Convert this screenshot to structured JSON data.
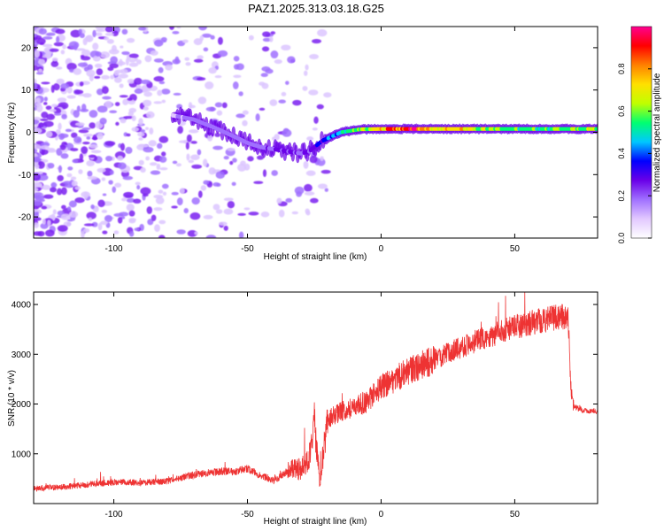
{
  "title": "PAZ1.2025.313.03.18.G25",
  "chart_data": [
    {
      "type": "heatmap",
      "subtype": "spectrogram",
      "xlabel": "Height of straight line (km)",
      "ylabel": "Frequency (Hz)",
      "xlim": [
        -130,
        81
      ],
      "ylim": [
        -25,
        25
      ],
      "xticks": [
        -100,
        -50,
        0,
        50
      ],
      "yticks": [
        -20,
        -10,
        0,
        10,
        20
      ],
      "colorbar": {
        "label": "Normalized spectral amplitude",
        "range": [
          0,
          1
        ],
        "ticks": [
          "0.0",
          "0.2",
          "0.4",
          "0.6",
          "0.8"
        ],
        "colormap": [
          "#ffffff",
          "#e2c8ff",
          "#a070ff",
          "#6a00e8",
          "#0000ff",
          "#00c8ff",
          "#00ff70",
          "#c0ff00",
          "#ffe000",
          "#ff8000",
          "#ff0000",
          "#ff0090"
        ]
      },
      "signal_track": {
        "height_km": [
          -78,
          -70,
          -62,
          -55,
          -50,
          -45,
          -40,
          -35,
          -30,
          -27,
          -22,
          -15,
          -8,
          0,
          10,
          20,
          30,
          40,
          50,
          60,
          70,
          81
        ],
        "frequency_hz": [
          4,
          3,
          1,
          -1,
          -2.5,
          -3.5,
          -4,
          -4.5,
          -5,
          -4.5,
          -2,
          0,
          0.7,
          0.8,
          0.8,
          0.8,
          0.8,
          0.8,
          0.8,
          0.8,
          0.8,
          0.8
        ],
        "amplitude": [
          0.12,
          0.18,
          0.2,
          0.18,
          0.16,
          0.2,
          0.24,
          0.26,
          0.22,
          0.25,
          0.35,
          0.45,
          0.6,
          0.75,
          0.9,
          0.75,
          0.7,
          0.6,
          0.55,
          0.55,
          0.6,
          0.65
        ]
      }
    },
    {
      "type": "line",
      "xlabel": "Height of straight line (km)",
      "ylabel": "SNR (10 * v/v)",
      "xlim": [
        -130,
        81
      ],
      "ylim": [
        0,
        4250
      ],
      "xticks": [
        -100,
        -50,
        0,
        50
      ],
      "yticks": [
        1000,
        2000,
        3000,
        4000
      ],
      "color": "#ee3333",
      "series": [
        {
          "name": "SNR",
          "x": [
            -130,
            -120,
            -110,
            -100,
            -90,
            -80,
            -72,
            -65,
            -60,
            -55,
            -50,
            -45,
            -40,
            -35,
            -30,
            -27,
            -25,
            -23,
            -20,
            -15,
            -10,
            -5,
            0,
            10,
            20,
            30,
            40,
            50,
            60,
            68,
            70,
            71,
            72,
            75,
            81
          ],
          "y": [
            300,
            330,
            380,
            430,
            420,
            450,
            560,
            620,
            650,
            640,
            700,
            560,
            450,
            650,
            700,
            900,
            1700,
            400,
            1700,
            1850,
            1950,
            2050,
            2350,
            2650,
            2900,
            3150,
            3350,
            3550,
            3680,
            3760,
            3780,
            2300,
            1950,
            1880,
            1850
          ]
        }
      ]
    }
  ]
}
